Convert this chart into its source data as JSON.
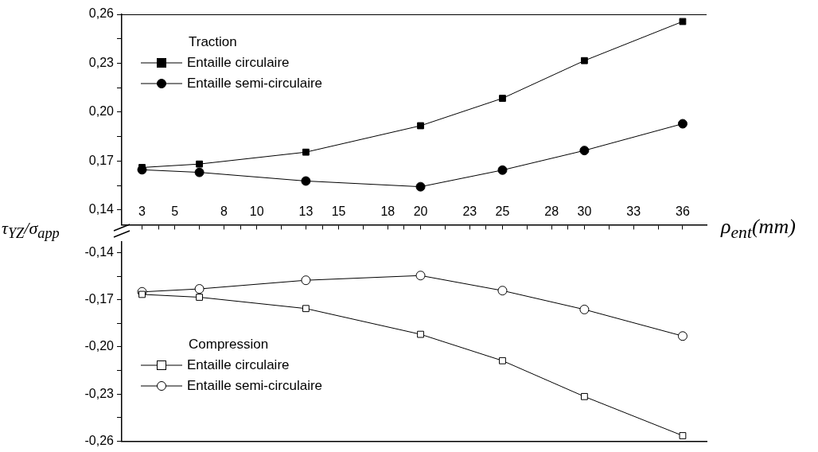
{
  "chart_data": [
    {
      "type": "line",
      "ylabel": "τ$_{YZ}$/σ$_{app}$",
      "xlabel": "ρ$_{ent}$(mm)",
      "legend_title": "Traction",
      "legend": "top left",
      "xlim": [
        1.76,
        37.46
      ],
      "xticks": [
        3,
        {
          "value": 4,
          "label": null
        },
        5,
        {
          "value": 6.5,
          "label": null
        },
        8,
        {
          "value": 9,
          "label": null
        },
        10,
        {
          "value": 11.5,
          "label": null
        },
        13,
        {
          "value": 14,
          "label": null
        },
        15,
        {
          "value": 16.5,
          "label": null
        },
        18,
        {
          "value": 19,
          "label": null
        },
        20,
        {
          "value": 21.5,
          "label": null
        },
        23,
        {
          "value": 24,
          "label": null
        },
        25,
        {
          "value": 26.5,
          "label": null
        },
        28,
        {
          "value": 29,
          "label": null
        },
        30,
        {
          "value": 31.5,
          "label": null
        },
        33,
        {
          "value": 34.5,
          "label": null
        },
        36
      ],
      "ylim": [
        0.131,
        0.26
      ],
      "yticks": [
        {
          "value": 0.14,
          "label": "0,14"
        },
        {
          "value": 0.155,
          "label": null
        },
        {
          "value": 0.17,
          "label": "0,17"
        },
        {
          "value": 0.185,
          "label": null
        },
        {
          "value": 0.2,
          "label": "0,20"
        },
        {
          "value": 0.215,
          "label": null
        },
        {
          "value": 0.23,
          "label": "0,23"
        },
        {
          "value": 0.245,
          "label": null
        },
        {
          "value": 0.26,
          "label": "0,26"
        }
      ],
      "x": [
        3,
        6.5,
        13,
        20,
        25,
        30,
        36
      ],
      "series": [
        {
          "name": "Entaille circulaire",
          "color": "#000000",
          "marker": "square",
          "values": [
            0.1661,
            0.1682,
            0.1755,
            0.1917,
            0.2085,
            0.2316,
            0.2556
          ]
        },
        {
          "name": "Entaille semi-circulaire",
          "color": "#000000",
          "marker": "circle",
          "values": [
            0.1647,
            0.1631,
            0.1578,
            0.1543,
            0.1645,
            0.1765,
            0.1929
          ]
        }
      ]
    },
    {
      "type": "line",
      "legend_title": "Compression",
      "legend": "bottom left",
      "tick_labels": "y",
      "xlim": [
        1.76,
        37.46
      ],
      "ylim": [
        -0.26,
        -0.133
      ],
      "yticks": [
        {
          "value": -0.26,
          "label": "-0,26"
        },
        {
          "value": -0.245,
          "label": null
        },
        {
          "value": -0.23,
          "label": "-0,23"
        },
        {
          "value": -0.215,
          "label": null
        },
        {
          "value": -0.2,
          "label": "-0,20"
        },
        {
          "value": -0.185,
          "label": null
        },
        {
          "value": -0.17,
          "label": "-0,17"
        },
        {
          "value": -0.155,
          "label": null
        },
        {
          "value": -0.14,
          "label": "-0,14"
        }
      ],
      "x": [
        3,
        6.5,
        13,
        20,
        25,
        30,
        36
      ],
      "series": [
        {
          "name": "Entaille circulaire",
          "color": "#000000",
          "marker": "square",
          "values": [
            -0.1666,
            -0.1684,
            -0.1756,
            -0.192,
            -0.2088,
            -0.2316,
            -0.2565
          ]
        },
        {
          "name": "Entaille semi-circulaire",
          "color": "#000000",
          "marker": "circle",
          "values": [
            -0.165,
            -0.1631,
            -0.1576,
            -0.1546,
            -0.1642,
            -0.1762,
            -0.1931
          ]
        }
      ]
    }
  ]
}
